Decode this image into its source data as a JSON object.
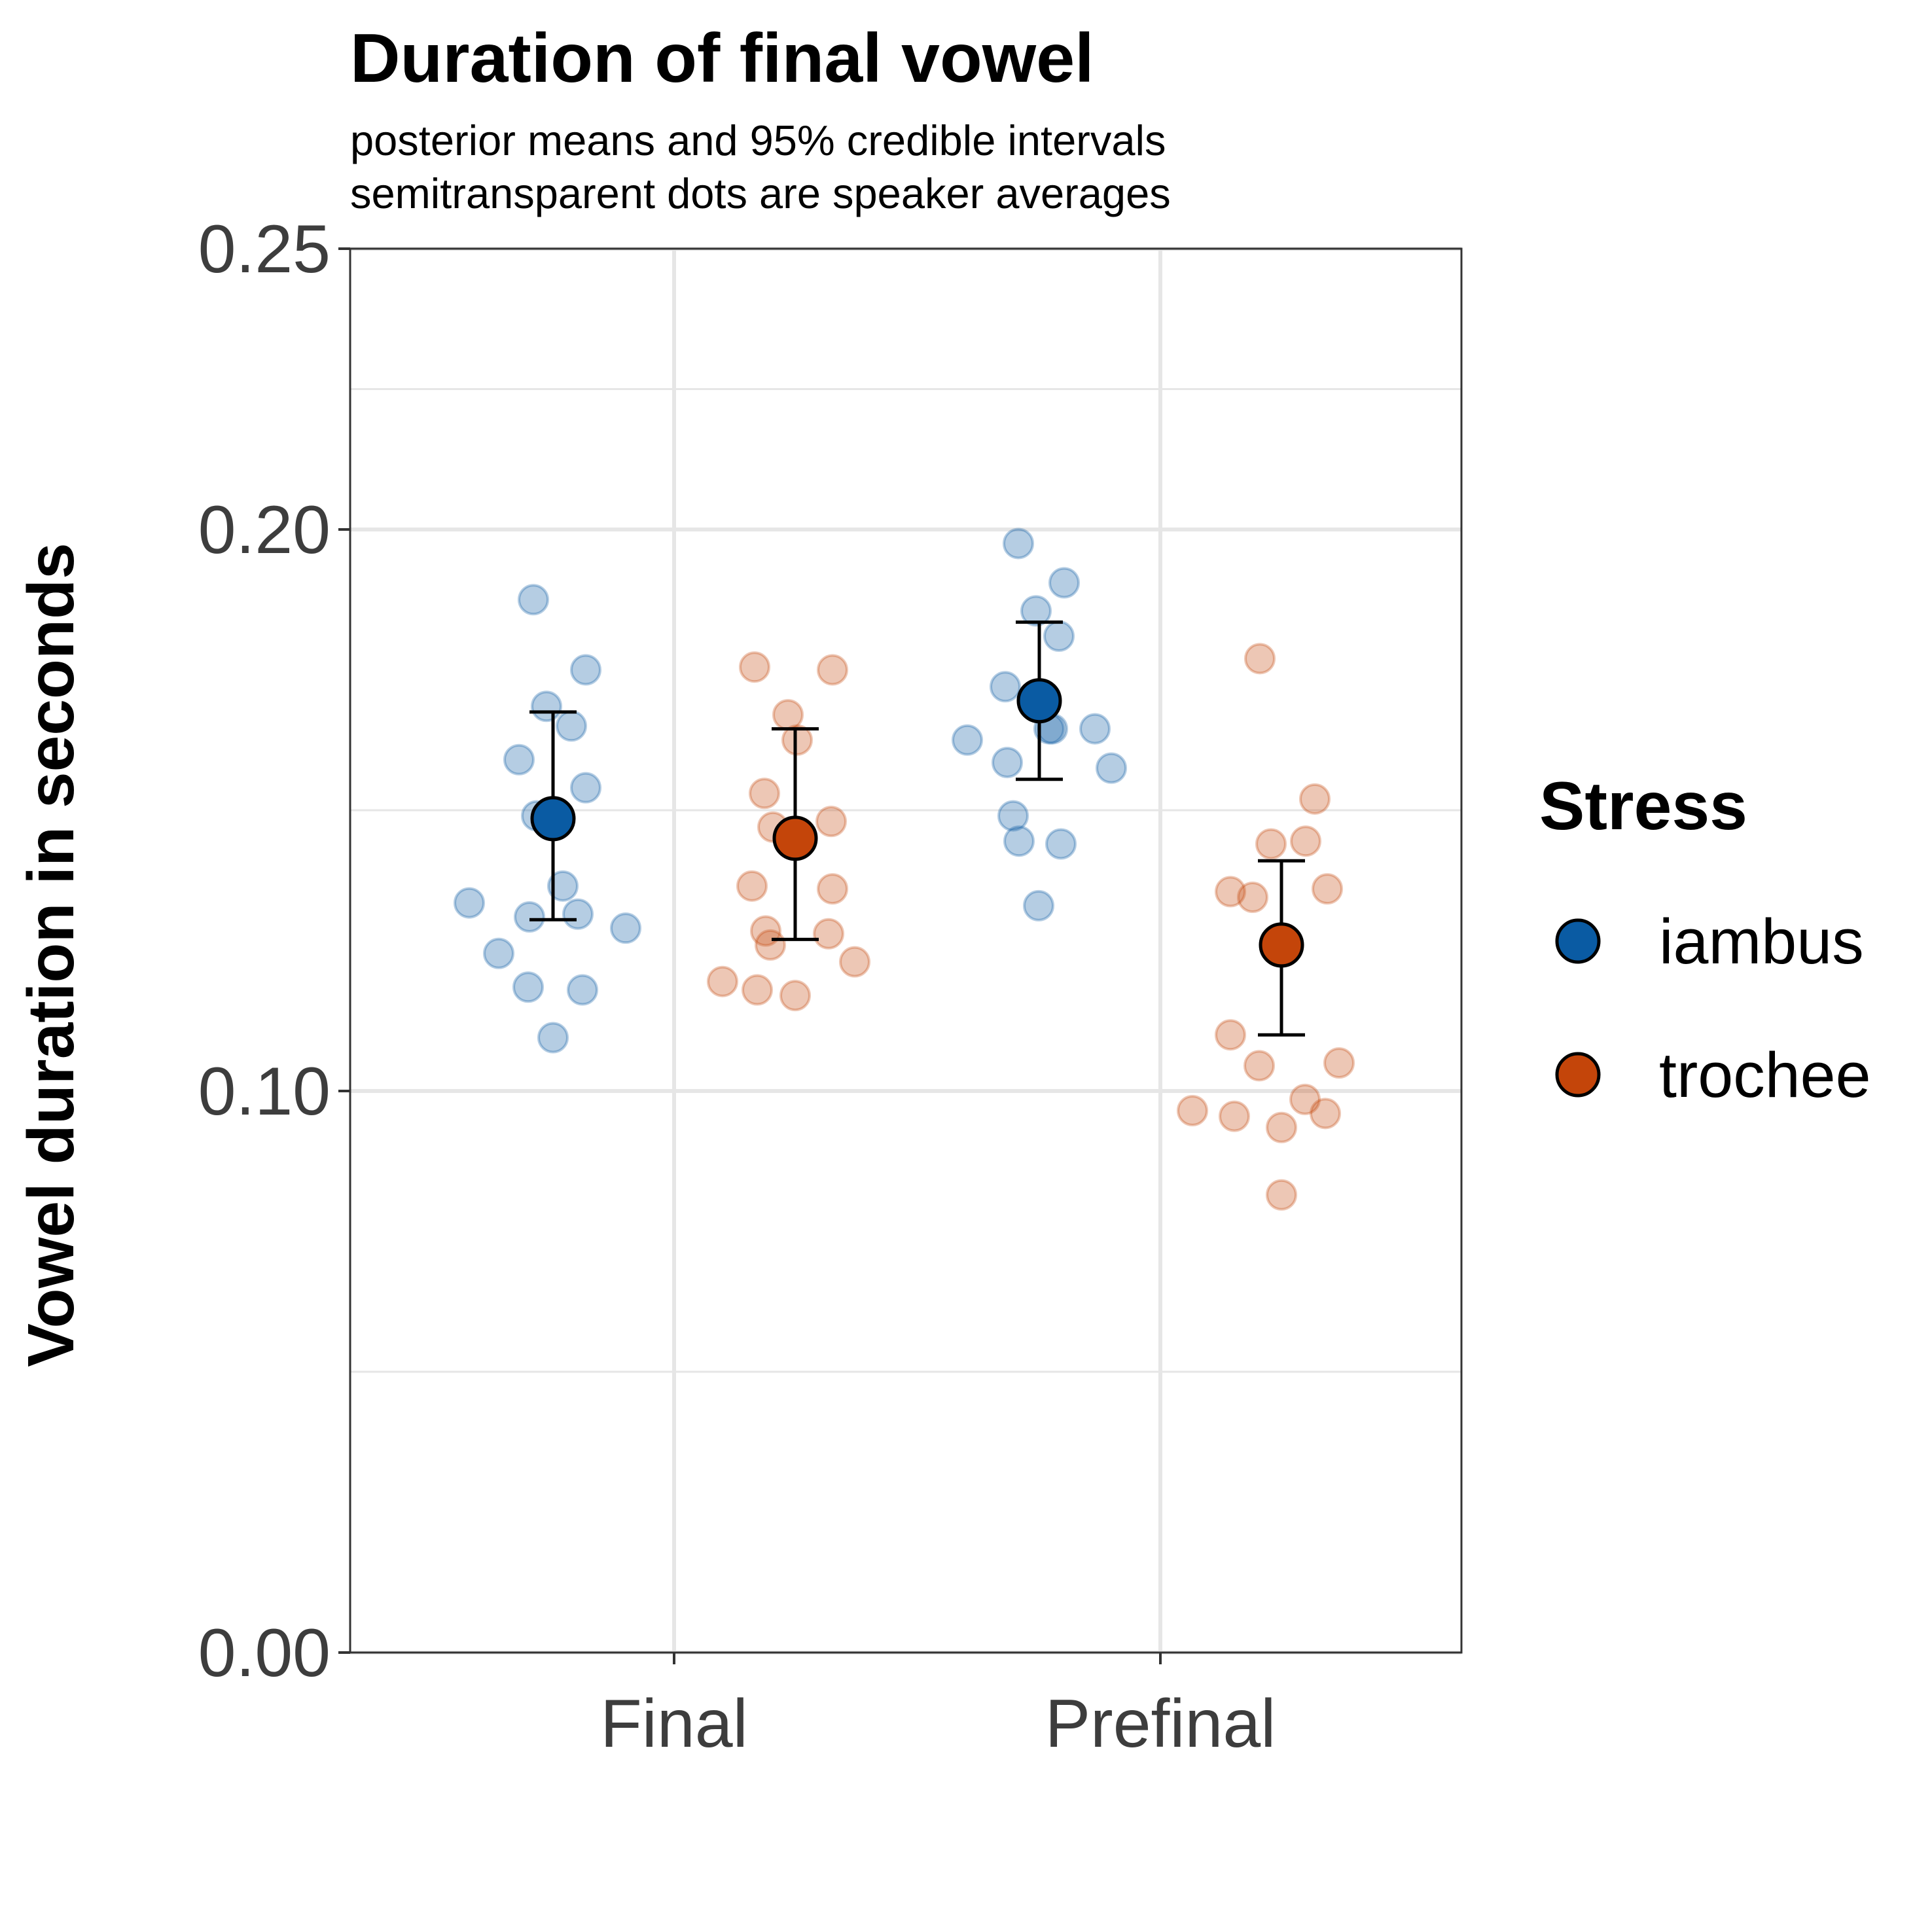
{
  "chart_data": {
    "type": "scatter",
    "title": "Duration of final vowel",
    "subtitle_lines": [
      "posterior means and 95% credible intervals",
      "semitransparent dots are speaker averages"
    ],
    "ylabel": "Vowel duration in seconds",
    "xlabel": "",
    "categories": [
      "Final",
      "Prefinal"
    ],
    "ylim": [
      0,
      0.25
    ],
    "y_ticks": [
      0.0,
      0.1,
      0.2,
      0.25
    ],
    "y_tick_labels": [
      "0.00",
      "0.10",
      "0.20",
      "0.25"
    ],
    "y_minor_gridlines": [
      0.05,
      0.15,
      0.225
    ],
    "grid": true,
    "legend": {
      "title": "Stress",
      "placement": "right",
      "entries": [
        "iambus",
        "trochee"
      ]
    },
    "colors": {
      "iambus": "#0a5ba3",
      "trochee": "#c4450a",
      "grid": "#e6e6e6",
      "panel_border": "#333333"
    },
    "series": [
      {
        "name": "iambus",
        "means": [
          0.1485,
          0.1695
        ],
        "ci_lower": [
          0.1305,
          0.1555
        ],
        "ci_upper": [
          0.1675,
          0.1835
        ],
        "speakers": [
          [
            0.1875,
            0.175,
            0.1685,
            0.165,
            0.159,
            0.154,
            0.149,
            0.1365,
            0.1335,
            0.1315,
            0.131,
            0.129,
            0.1245,
            0.118,
            0.1185,
            0.1095
          ],
          [
            0.1975,
            0.1905,
            0.1855,
            0.181,
            0.172,
            0.1645,
            0.1645,
            0.1645,
            0.1625,
            0.1585,
            0.1575,
            0.149,
            0.1445,
            0.144,
            0.133
          ]
        ]
      },
      {
        "name": "trochee",
        "means": [
          0.145,
          0.126
        ],
        "ci_lower": [
          0.127,
          0.11
        ],
        "ci_upper": [
          0.1645,
          0.141
        ],
        "speakers": [
          [
            0.1755,
            0.175,
            0.167,
            0.1625,
            0.153,
            0.147,
            0.148,
            0.146,
            0.1365,
            0.136,
            0.1285,
            0.128,
            0.126,
            0.123,
            0.1195,
            0.118,
            0.117
          ],
          [
            0.177,
            0.152,
            0.1445,
            0.144,
            0.136,
            0.1355,
            0.1345,
            0.11,
            0.1045,
            0.105,
            0.0985,
            0.0965,
            0.096,
            0.0955,
            0.0935,
            0.0815
          ]
        ]
      }
    ]
  }
}
